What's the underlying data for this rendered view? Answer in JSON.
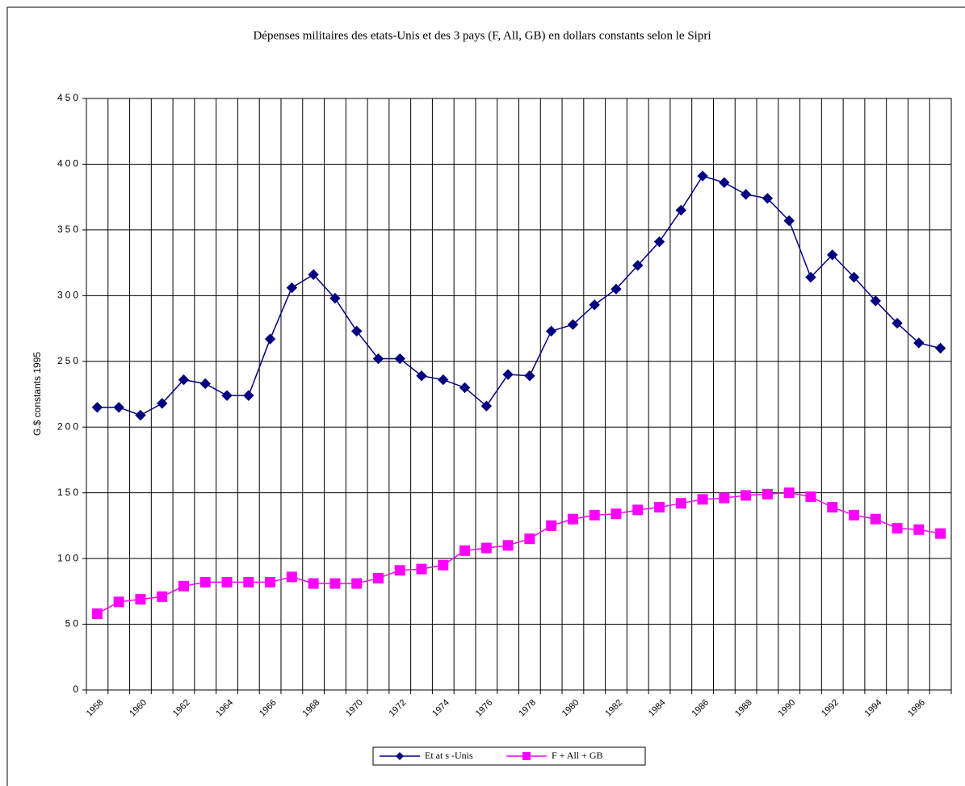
{
  "chart_data": {
    "type": "line",
    "title": "Dépenses militaires des etats-Unis et des 3 pays (F, All, GB) en dollars constants selon le Sipri",
    "y_label": "G.$ constants 1995",
    "categories": [
      "1958",
      null,
      "1960",
      null,
      "1962",
      null,
      "1964",
      null,
      "1966",
      null,
      "1968",
      null,
      "1970",
      null,
      "1972",
      null,
      "1974",
      null,
      "1976",
      null,
      "1978",
      null,
      "1980",
      null,
      "1982",
      null,
      "1984",
      null,
      "1986",
      null,
      "1988",
      null,
      "1990",
      null,
      "1992",
      null,
      "1994",
      null,
      "1996",
      null
    ],
    "series": [
      {
        "name": "Et at s -Unis",
        "color": "#000080",
        "marker": "diamond",
        "values": [
          215,
          215,
          209,
          218,
          236,
          233,
          224,
          224,
          267,
          306,
          316,
          298,
          273,
          252,
          252,
          239,
          236,
          230,
          216,
          240,
          239,
          273,
          278,
          293,
          305,
          323,
          341,
          365,
          391,
          386,
          377,
          374,
          357,
          314,
          331,
          314,
          296,
          279,
          264,
          260
        ]
      },
      {
        "name": "F + All + GB",
        "color": "#ff00ff",
        "marker": "square",
        "values": [
          58,
          67,
          69,
          71,
          79,
          82,
          82,
          82,
          82,
          86,
          81,
          81,
          81,
          85,
          91,
          92,
          95,
          106,
          108,
          110,
          115,
          125,
          130,
          133,
          134,
          137,
          139,
          142,
          145,
          146,
          148,
          149,
          150,
          147,
          139,
          133,
          130,
          123,
          122,
          119
        ]
      }
    ],
    "ylim": [
      0,
      450
    ],
    "yticks": [
      0,
      50,
      100,
      150,
      200,
      250,
      300,
      350,
      400,
      450
    ],
    "grid": true,
    "legend": "bottom"
  }
}
